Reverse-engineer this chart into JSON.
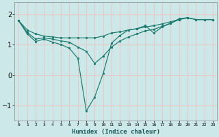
{
  "background_color": "#cce8e8",
  "grid_color": "#e8c8c8",
  "line_color": "#1a7a6e",
  "xlabel": "Humidex (Indice chaleur)",
  "xlim": [
    -0.5,
    23.5
  ],
  "ylim": [
    -1.5,
    2.4
  ],
  "yticks": [
    -1,
    0,
    1,
    2
  ],
  "xtick_labels": [
    "0",
    "1",
    "2",
    "3",
    "4",
    "5",
    "6",
    "7",
    "8",
    "9",
    "10",
    "11",
    "12",
    "13",
    "14",
    "15",
    "16",
    "17",
    "18",
    "19",
    "20",
    "21",
    "22",
    "23"
  ],
  "series1_x": [
    0,
    1,
    2,
    3,
    4,
    5,
    6,
    7,
    8,
    9,
    10,
    11,
    12,
    13,
    14,
    15,
    16,
    17,
    18,
    19,
    20,
    21,
    22,
    23
  ],
  "series1_y": [
    1.78,
    1.35,
    1.1,
    1.18,
    1.08,
    1.0,
    0.88,
    0.55,
    -1.18,
    -0.72,
    0.05,
    1.05,
    1.3,
    1.48,
    1.52,
    1.62,
    1.38,
    1.58,
    1.7,
    1.85,
    1.88,
    1.82,
    1.82,
    1.82
  ],
  "series2_x": [
    0,
    1,
    2,
    3,
    4,
    5,
    6,
    7,
    8,
    9,
    10,
    11,
    12,
    13,
    14,
    15,
    16,
    17,
    18,
    19,
    20,
    21,
    22,
    23
  ],
  "series2_y": [
    1.78,
    1.4,
    1.18,
    1.22,
    1.18,
    1.12,
    1.08,
    0.92,
    0.78,
    0.38,
    0.62,
    0.92,
    1.12,
    1.25,
    1.35,
    1.45,
    1.5,
    1.6,
    1.7,
    1.82,
    1.88,
    1.82,
    1.82,
    1.82
  ],
  "series3_x": [
    0,
    1,
    2,
    3,
    4,
    5,
    6,
    7,
    8,
    9,
    10,
    11,
    12,
    13,
    14,
    15,
    16,
    17,
    18,
    19,
    20,
    21,
    22,
    23
  ],
  "series3_y": [
    1.78,
    1.48,
    1.35,
    1.28,
    1.25,
    1.22,
    1.22,
    1.22,
    1.22,
    1.22,
    1.28,
    1.38,
    1.42,
    1.48,
    1.52,
    1.58,
    1.62,
    1.68,
    1.75,
    1.82,
    1.88,
    1.82,
    1.82,
    1.82
  ]
}
